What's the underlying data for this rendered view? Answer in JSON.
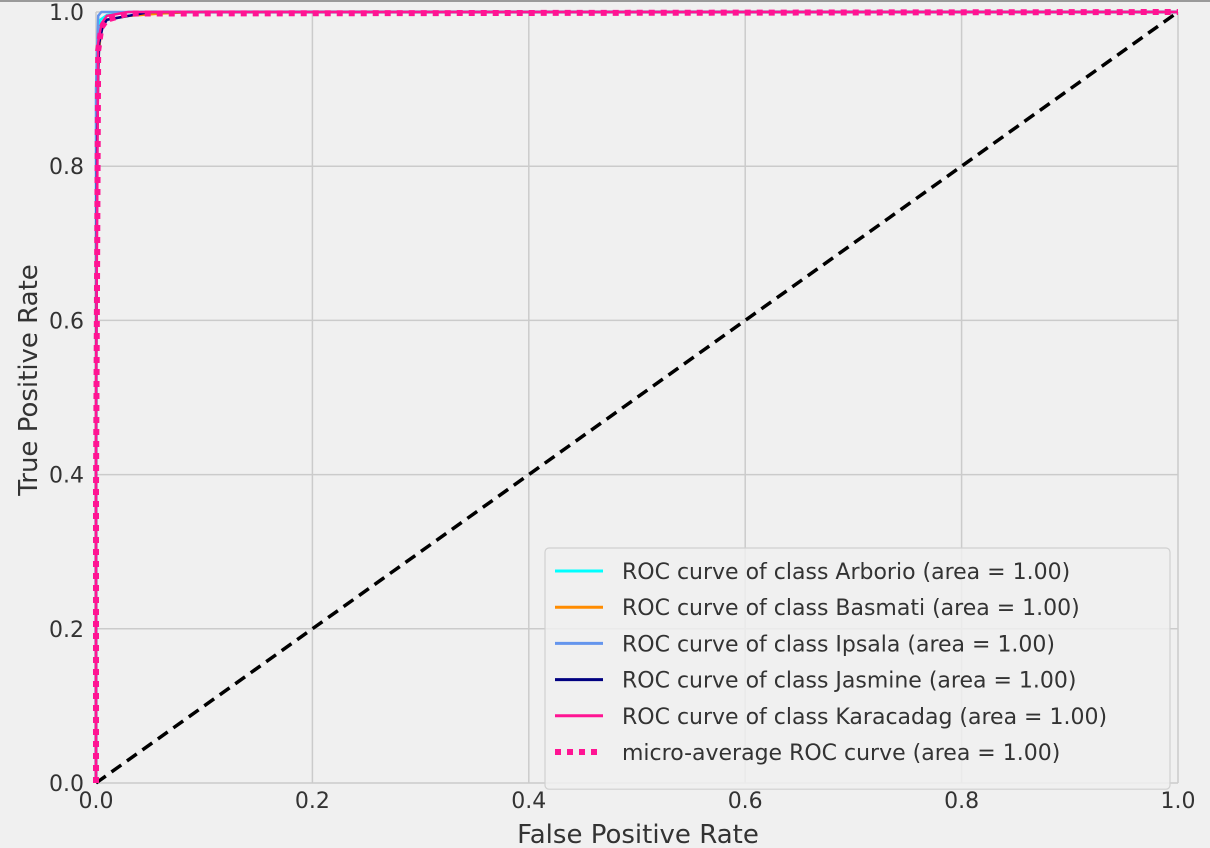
{
  "chart_data": {
    "type": "line",
    "title": "",
    "xlabel": "False Positive Rate",
    "ylabel": "True Positive Rate",
    "xlim": [
      0.0,
      1.0
    ],
    "ylim": [
      0.0,
      1.0
    ],
    "xticks": [
      "0.0",
      "0.2",
      "0.4",
      "0.6",
      "0.8",
      "1.0"
    ],
    "yticks": [
      "0.0",
      "0.2",
      "0.4",
      "0.6",
      "0.8",
      "1.0"
    ],
    "grid": true,
    "legend_position": "lower-right",
    "series": [
      {
        "name": "ROC curve of class Arborio (area = 1.00)",
        "color": "#00ffff",
        "style": "solid",
        "x": [
          0.0,
          0.0,
          0.002,
          0.004,
          0.01,
          0.03,
          1.0
        ],
        "y": [
          0.0,
          0.6,
          0.95,
          0.99,
          0.996,
          1.0,
          1.0
        ]
      },
      {
        "name": "ROC curve of class Basmati (area = 1.00)",
        "color": "#ff8c00",
        "style": "solid",
        "x": [
          0.0,
          0.0,
          0.002,
          0.005,
          0.01,
          0.03,
          0.06,
          0.09,
          1.0
        ],
        "y": [
          0.0,
          0.7,
          0.94,
          0.98,
          0.99,
          0.995,
          0.998,
          1.0,
          1.0
        ]
      },
      {
        "name": "ROC curve of class Ipsala (area = 1.00)",
        "color": "#6495ed",
        "style": "solid",
        "x": [
          0.0,
          0.0,
          0.002,
          0.005,
          1.0
        ],
        "y": [
          0.0,
          0.9,
          0.995,
          1.0,
          1.0
        ]
      },
      {
        "name": "ROC curve of class Jasmine (area = 1.00)",
        "color": "#000080",
        "style": "solid",
        "x": [
          0.0,
          0.0,
          0.001,
          0.002,
          0.003,
          0.006,
          0.01,
          0.03,
          0.05,
          1.0
        ],
        "y": [
          0.0,
          0.4,
          0.82,
          0.92,
          0.96,
          0.98,
          0.99,
          0.995,
          1.0,
          1.0
        ]
      },
      {
        "name": "ROC curve of class Karacadag (area = 1.00)",
        "color": "#ff1493",
        "style": "solid",
        "x": [
          0.0,
          0.0,
          0.002,
          0.005,
          0.01,
          0.03,
          1.0
        ],
        "y": [
          0.0,
          0.5,
          0.96,
          0.985,
          0.995,
          1.0,
          1.0
        ]
      },
      {
        "name": "micro-average ROC curve (area = 1.00)",
        "color": "#ff1493",
        "style": "dotted",
        "x": [
          0.0,
          0.0,
          0.002,
          0.005,
          0.01,
          0.03,
          1.0
        ],
        "y": [
          0.0,
          0.38,
          0.95,
          0.98,
          0.99,
          0.998,
          1.0
        ]
      }
    ],
    "reference_line": {
      "color": "#000000",
      "style": "dashed",
      "x": [
        0.0,
        1.0
      ],
      "y": [
        0.0,
        1.0
      ]
    },
    "colors": {
      "background": "#f0f0f0",
      "grid": "#cbcbcb",
      "text": "#333333"
    }
  }
}
